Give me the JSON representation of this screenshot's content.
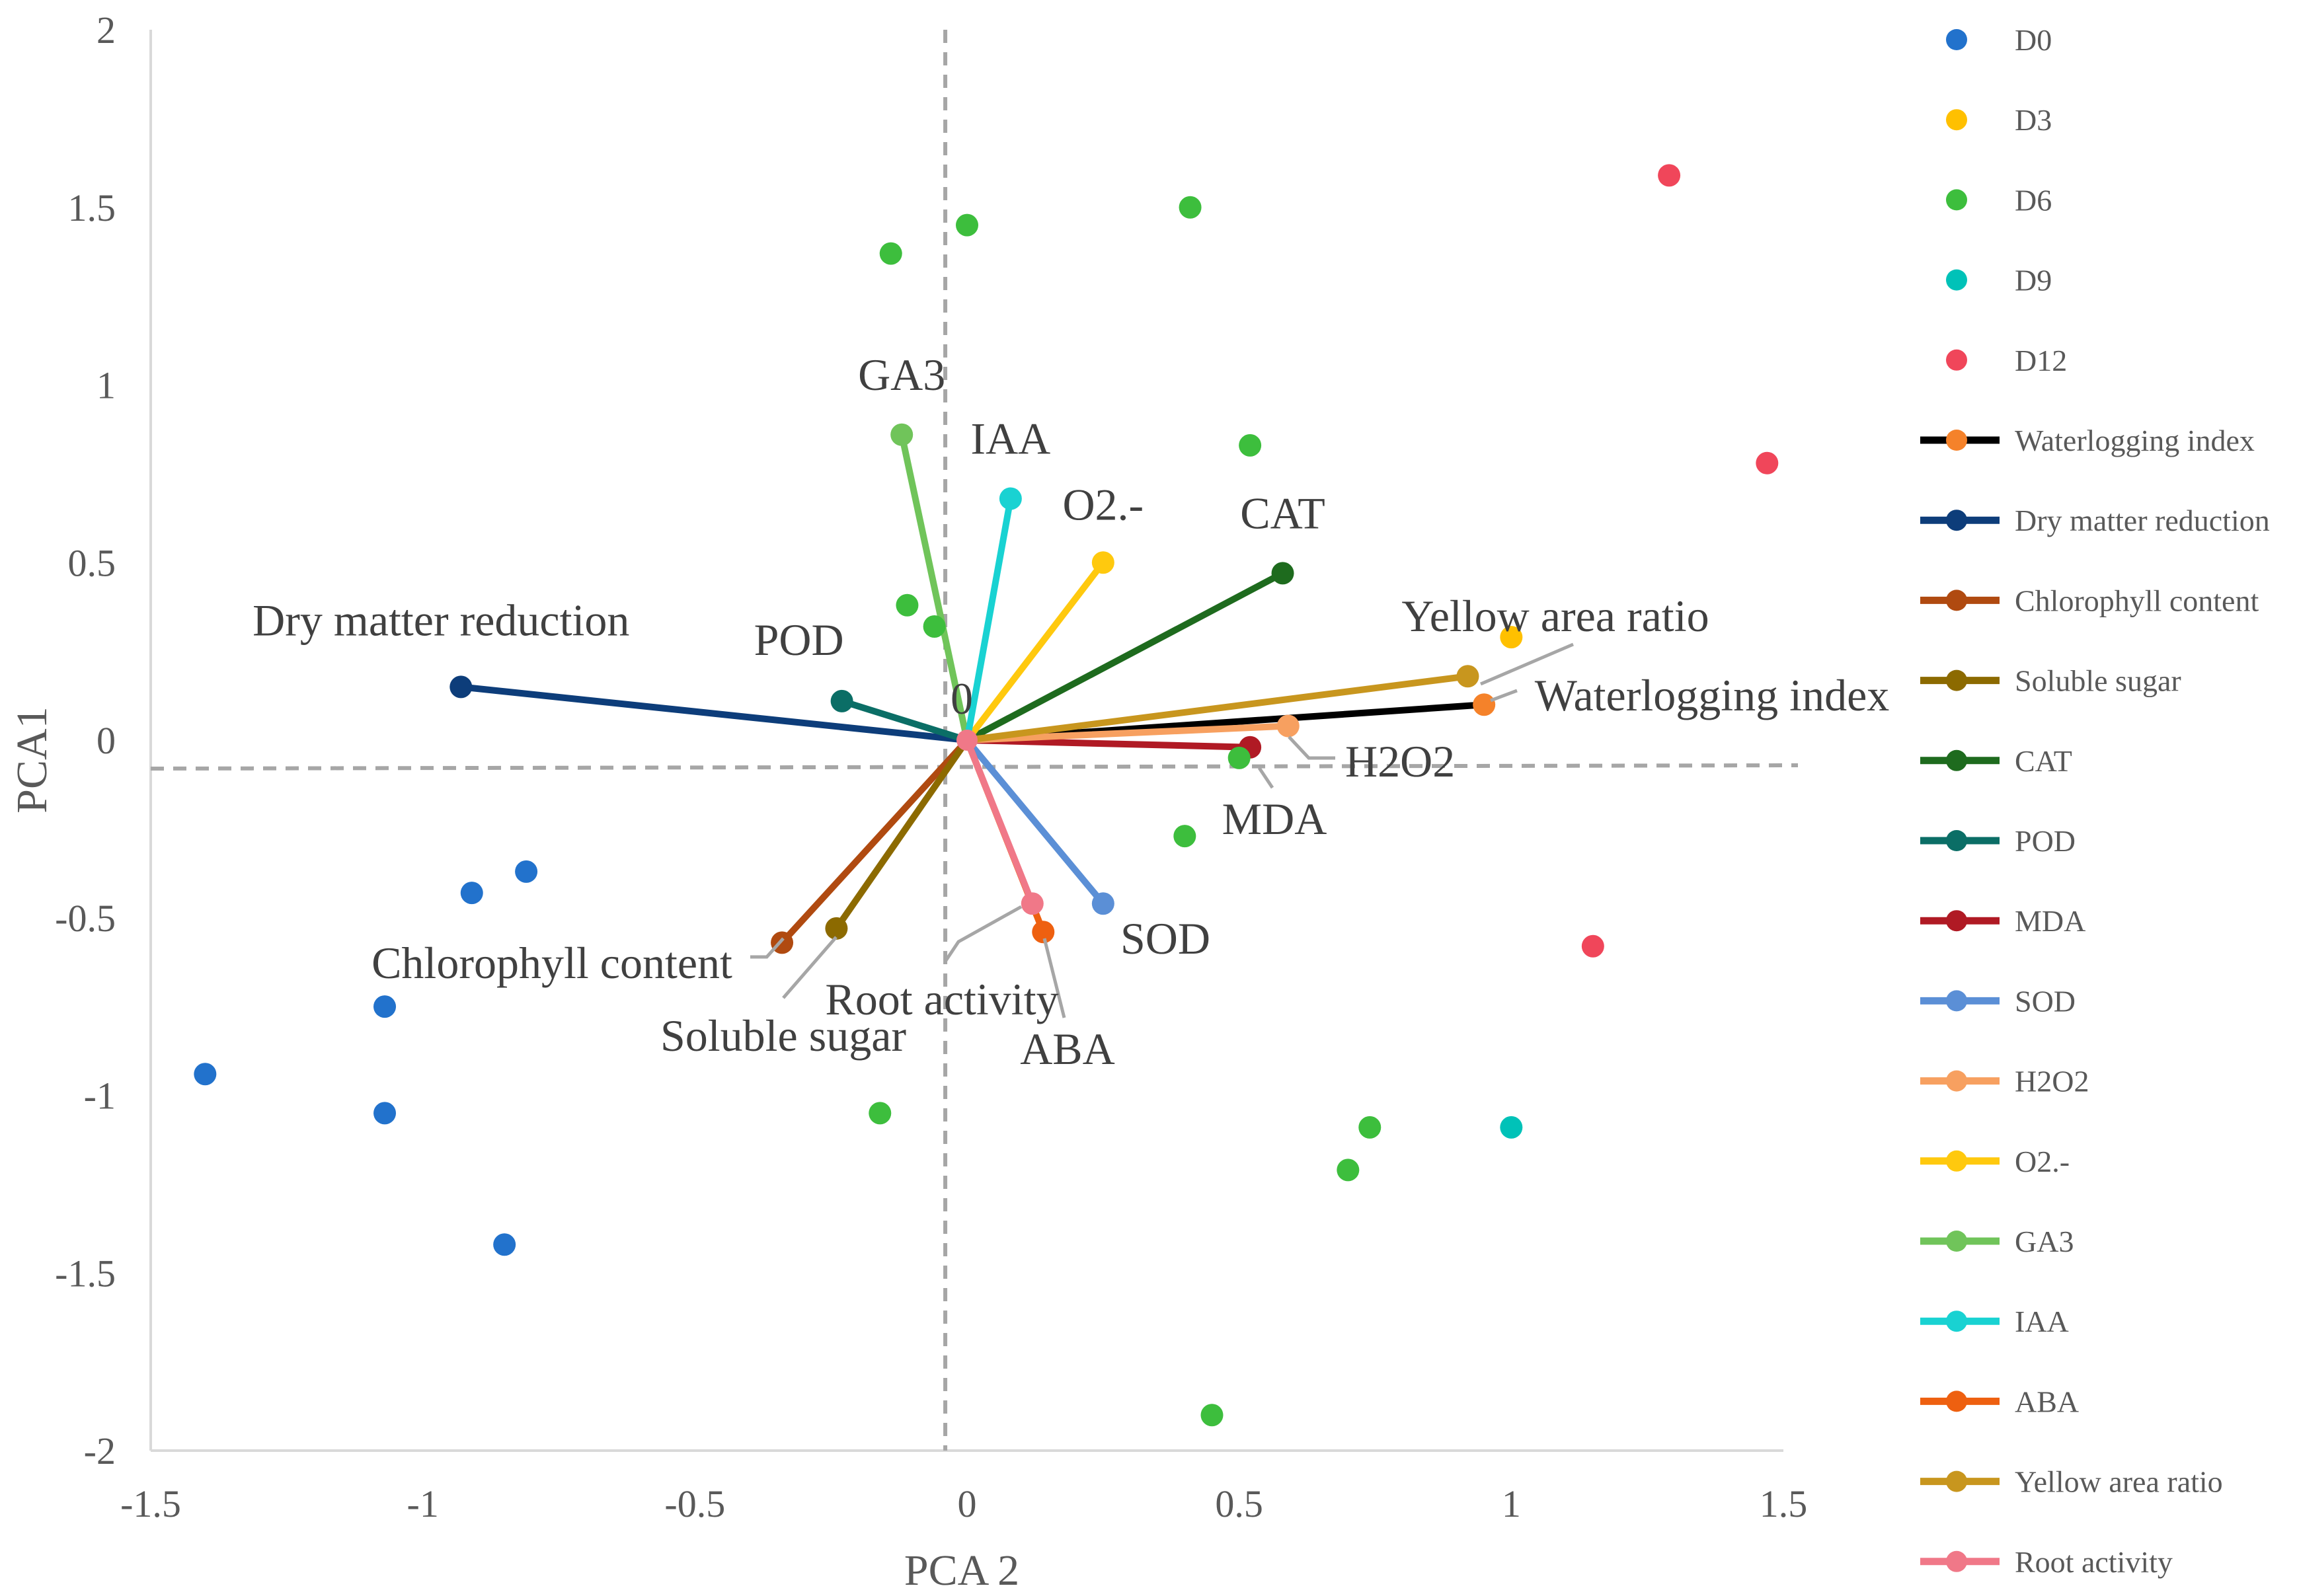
{
  "chart_data": {
    "type": "scatter",
    "xlabel": "PCA 2",
    "ylabel": "PCA1",
    "xlim": [
      -1.5,
      1.5
    ],
    "ylim": [
      -2,
      2
    ],
    "x_ticks": [
      "-1.5",
      "-1",
      "-0.5",
      "0",
      "0.5",
      "1",
      "1.5"
    ],
    "y_ticks": [
      "2",
      "1.5",
      "1",
      "0.5",
      "0",
      "-0.5",
      "-1",
      "-1.5",
      "-2"
    ],
    "origin_label": "0",
    "reference_lines": {
      "vertical_x": -0.04,
      "horizontal_y": -0.08
    },
    "legend_position": "right",
    "series": [
      {
        "name": "D0",
        "color": "#2272CC",
        "points": [
          [
            -1.4,
            -0.94
          ],
          [
            -1.07,
            -0.75
          ],
          [
            -1.07,
            -1.05
          ],
          [
            -0.91,
            -0.43
          ],
          [
            -0.81,
            -0.37
          ],
          [
            -0.85,
            -1.42
          ]
        ]
      },
      {
        "name": "D3",
        "color": "#FFC000",
        "points": [
          [
            1.0,
            0.29
          ]
        ]
      },
      {
        "name": "D6",
        "color": "#3DBE3D",
        "points": [
          [
            -0.14,
            1.37
          ],
          [
            0.0,
            1.45
          ],
          [
            0.41,
            1.5
          ],
          [
            0.52,
            0.83
          ],
          [
            -0.11,
            0.38
          ],
          [
            -0.06,
            0.32
          ],
          [
            0.5,
            -0.05
          ],
          [
            0.4,
            -0.27
          ],
          [
            -0.16,
            -1.05
          ],
          [
            0.74,
            -1.09
          ],
          [
            0.7,
            -1.21
          ],
          [
            0.45,
            -1.9
          ]
        ]
      },
      {
        "name": "D9",
        "color": "#00C2B8",
        "points": [
          [
            1.0,
            -1.09
          ]
        ]
      },
      {
        "name": "D12",
        "color": "#F0465A",
        "points": [
          [
            1.29,
            1.59
          ],
          [
            1.47,
            0.78
          ],
          [
            1.15,
            -0.58
          ]
        ]
      }
    ],
    "vectors": [
      {
        "name": "Waterlogging index",
        "label": "Waterlogging index",
        "color": "#000000",
        "tip_color": "#F5822A",
        "x": 0.95,
        "y": 0.1
      },
      {
        "name": "Dry matter reduction",
        "label": "Dry matter reduction",
        "color": "#0D3D7A",
        "tip_color": "#0D3D7A",
        "x": -0.93,
        "y": 0.15
      },
      {
        "name": "Chlorophyll content",
        "label": "Chlorophyll content",
        "color": "#B04A10",
        "tip_color": "#B04A10",
        "x": -0.34,
        "y": -0.57
      },
      {
        "name": "Soluble sugar",
        "label": "Soluble sugar",
        "color": "#8C6A00",
        "tip_color": "#8C6A00",
        "x": -0.24,
        "y": -0.53
      },
      {
        "name": "CAT",
        "label": "CAT",
        "color": "#1E6B1E",
        "tip_color": "#1E6B1E",
        "x": 0.58,
        "y": 0.47
      },
      {
        "name": "POD",
        "label": "POD",
        "color": "#0B6E66",
        "tip_color": "#0B6E66",
        "x": -0.23,
        "y": 0.11
      },
      {
        "name": "MDA",
        "label": "MDA",
        "color": "#B01A24",
        "tip_color": "#B01A24",
        "x": 0.52,
        "y": -0.02
      },
      {
        "name": "SOD",
        "label": "SOD",
        "color": "#5B8FD6",
        "tip_color": "#5B8FD6",
        "x": 0.25,
        "y": -0.46
      },
      {
        "name": "H2O2",
        "label": "H2O2",
        "color": "#F7A060",
        "tip_color": "#F7A060",
        "x": 0.59,
        "y": 0.04
      },
      {
        "name": "O2.-",
        "label": "O2.-",
        "color": "#FFC90E",
        "tip_color": "#FFC90E",
        "x": 0.25,
        "y": 0.5
      },
      {
        "name": "GA3",
        "label": "GA3",
        "color": "#70C45A",
        "tip_color": "#70C45A",
        "x": -0.12,
        "y": 0.86
      },
      {
        "name": "IAA",
        "label": "IAA",
        "color": "#19D2D2",
        "tip_color": "#19D2D2",
        "x": 0.08,
        "y": 0.68
      },
      {
        "name": "ABA",
        "label": "ABA",
        "color": "#EE6010",
        "tip_color": "#EE6010",
        "x": 0.14,
        "y": -0.54
      },
      {
        "name": "Yellow area ratio",
        "label": "Yellow area ratio",
        "color": "#C8961E",
        "tip_color": "#C8961E",
        "x": 0.92,
        "y": 0.18
      },
      {
        "name": "Root activity",
        "label": "Root activity",
        "color": "#F07888",
        "tip_color": "#F07888",
        "x": 0.12,
        "y": -0.46
      }
    ]
  }
}
